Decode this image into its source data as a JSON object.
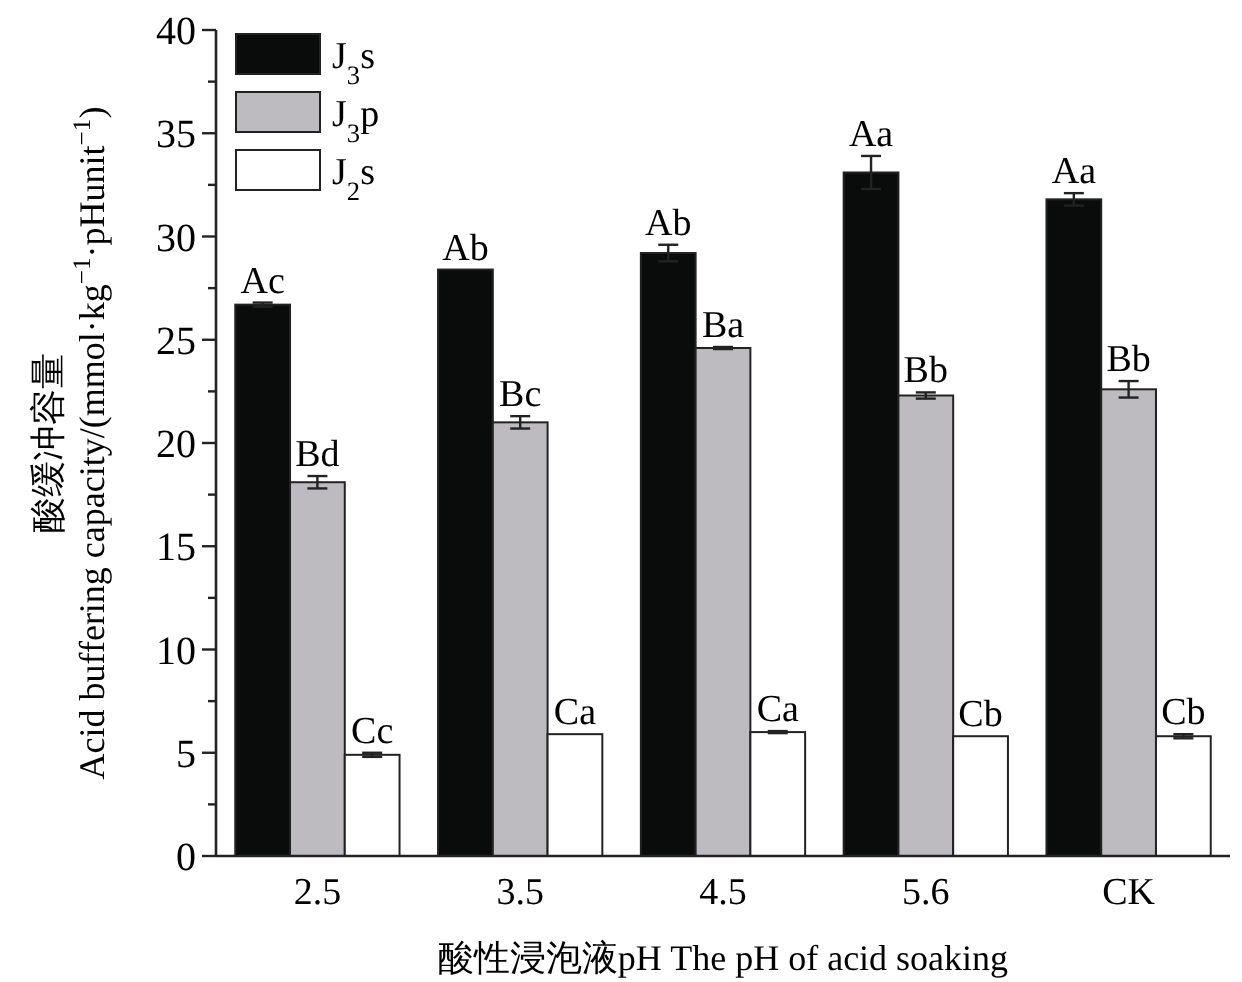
{
  "chart_data": {
    "type": "bar",
    "xlabel": "酸性浸泡液pH The pH of acid soaking",
    "ylabel": "酸缓冲容量\nAcid buffering capacity/(mmol·kg$^{−1}$·pHunit$^{−1}$)",
    "categories": [
      "2.5",
      "3.5",
      "4.5",
      "5.6",
      "CK"
    ],
    "series": [
      {
        "name": "J$_{3}$s",
        "color": "#0a0c0c",
        "values": [
          26.7,
          28.4,
          29.2,
          33.1,
          31.8
        ],
        "errors": [
          0.1,
          null,
          0.4,
          0.8,
          0.3
        ],
        "value_labels": [
          "Ac",
          "Ab",
          "Ab",
          "Aa",
          "Aa"
        ]
      },
      {
        "name": "J$_{3}$p",
        "color": "#bdbbc0",
        "values": [
          18.1,
          21.0,
          24.6,
          22.3,
          22.6
        ],
        "errors": [
          0.3,
          0.3,
          0.05,
          0.15,
          0.4
        ],
        "value_labels": [
          "Bd",
          "Bc",
          "Ba",
          "Bb",
          "Bb"
        ]
      },
      {
        "name": "J$_{2}$s",
        "color": "#ffffff",
        "values": [
          4.9,
          5.9,
          6.0,
          5.8,
          5.8
        ],
        "errors": [
          0.1,
          null,
          0.05,
          null,
          0.1
        ],
        "value_labels": [
          "Cc",
          "Ca",
          "Ca",
          "Cb",
          "Cb"
        ]
      }
    ],
    "ylim": [
      0,
      40
    ],
    "yticks": [
      0,
      {
        "value": 2.5,
        "label": null
      },
      5,
      {
        "value": 7.5,
        "label": null
      },
      10,
      {
        "value": 12.5,
        "label": null
      },
      15,
      {
        "value": 17.5,
        "label": null
      },
      20,
      {
        "value": 22.5,
        "label": null
      },
      25,
      {
        "value": 27.5,
        "label": null
      },
      30,
      {
        "value": 32.5,
        "label": null
      },
      35,
      {
        "value": 37.5,
        "label": null
      },
      40
    ],
    "legend": "top left",
    "grid": false
  }
}
